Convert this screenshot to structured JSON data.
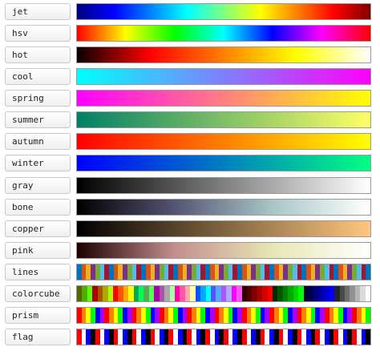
{
  "colormaps": [
    {
      "label": "jet",
      "kind": "gradient",
      "stops": [
        "#000080",
        "#0000ff",
        "#0080ff",
        "#00ffff",
        "#80ff80",
        "#ffff00",
        "#ff8000",
        "#ff0000",
        "#800000"
      ]
    },
    {
      "label": "hsv",
      "kind": "gradient",
      "stops": [
        "#ff0000",
        "#ffff00",
        "#00ff00",
        "#00ffff",
        "#0000ff",
        "#ff00ff",
        "#ff0000"
      ]
    },
    {
      "label": "hot",
      "kind": "gradient",
      "stops": [
        "#0a0000",
        "#ff0000",
        "#ff8000",
        "#ffff00",
        "#ffffff"
      ]
    },
    {
      "label": "cool",
      "kind": "gradient",
      "stops": [
        "#00ffff",
        "#ff00ff"
      ]
    },
    {
      "label": "spring",
      "kind": "gradient",
      "stops": [
        "#ff00ff",
        "#ffff00"
      ]
    },
    {
      "label": "summer",
      "kind": "gradient",
      "stops": [
        "#008066",
        "#ffff66"
      ]
    },
    {
      "label": "autumn",
      "kind": "gradient",
      "stops": [
        "#ff0000",
        "#ffff00"
      ]
    },
    {
      "label": "winter",
      "kind": "gradient",
      "stops": [
        "#0000ff",
        "#00ff80"
      ]
    },
    {
      "label": "gray",
      "kind": "gradient",
      "stops": [
        "#000000",
        "#ffffff"
      ]
    },
    {
      "label": "bone",
      "kind": "gradient",
      "stops": [
        "#000000",
        "#545474",
        "#a8c6c6",
        "#ffffff"
      ]
    },
    {
      "label": "copper",
      "kind": "gradient",
      "stops": [
        "#000000",
        "#ffc77f"
      ]
    },
    {
      "label": "pink",
      "kind": "gradient",
      "stops": [
        "#1e0000",
        "#c48e8e",
        "#e7e7b4",
        "#ffffff"
      ]
    },
    {
      "label": "lines",
      "kind": "cycle",
      "steps": 64,
      "cycle": [
        "#0072bd",
        "#d95319",
        "#edb120",
        "#7e2f8e",
        "#77ac30",
        "#4dbeee",
        "#a2142f"
      ]
    },
    {
      "label": "colorcube",
      "kind": "blocks",
      "blocks": [
        [
          "#556600",
          "#55aa00",
          "#55ff00",
          "#aa0000",
          "#aa5500",
          "#aaaa00",
          "#aaff00",
          "#ff0000",
          "#ff5500",
          "#ffaa00",
          "#ffff00",
          "#00aa55",
          "#00ff55",
          "#55aa55",
          "#55ff55",
          "#aa00aa",
          "#aa55aa",
          "#aaaaaa",
          "#aaffaa",
          "#ff00aa",
          "#ff55aa",
          "#ffaaaa",
          "#ffffaa",
          "#0055ff",
          "#00aaff",
          "#00ffff",
          "#5555ff",
          "#55aaff",
          "#aa55ff",
          "#aaaaff",
          "#ff00ff",
          "#ff55ff"
        ],
        [
          "#2a0000",
          "#550000",
          "#800000",
          "#aa0000",
          "#d40000",
          "#ff0000"
        ],
        [
          "#002a00",
          "#005500",
          "#008000",
          "#00aa00",
          "#00d400",
          "#00ff00"
        ],
        [
          "#00002a",
          "#000055",
          "#000080",
          "#0000aa",
          "#0000d4",
          "#0000ff"
        ],
        [
          "#242424",
          "#494949",
          "#6d6d6d",
          "#929292",
          "#b6b6b6",
          "#dbdbdb",
          "#ffffff"
        ]
      ]
    },
    {
      "label": "prism",
      "kind": "cycle",
      "steps": 64,
      "cycle": [
        "#ff0000",
        "#ff8000",
        "#ffff00",
        "#00ff00",
        "#0000ff",
        "#aa00ff"
      ]
    },
    {
      "label": "flag",
      "kind": "cycle",
      "steps": 64,
      "cycle": [
        "#ff0000",
        "#ffffff",
        "#0000ff",
        "#000000"
      ]
    }
  ]
}
